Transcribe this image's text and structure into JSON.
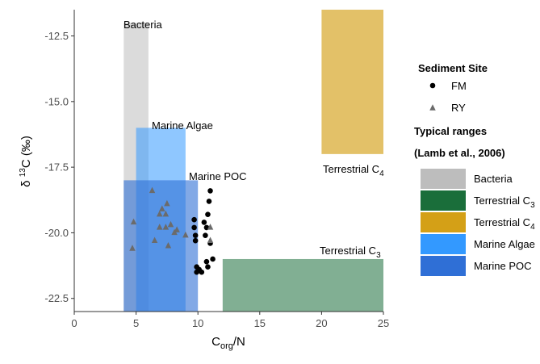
{
  "chart_data": {
    "type": "scatter",
    "xlabel": {
      "main": "C",
      "sub": "org",
      "tail": "/N"
    },
    "ylabel": {
      "delta": "δ",
      "sup": "13",
      "main": "C (‰)"
    },
    "xlim": [
      0,
      25
    ],
    "ylim": [
      -23,
      -11.5
    ],
    "x_ticks": [
      0,
      5,
      10,
      15,
      20,
      25
    ],
    "x_tick_labels": [
      "0",
      "5",
      "10",
      "15",
      "20",
      "25"
    ],
    "y_ticks": [
      -12.5,
      -15.0,
      -17.5,
      -20.0,
      -22.5
    ],
    "y_tick_labels": [
      "-12.5",
      "-15.0",
      "-17.5",
      "-20.0",
      "-22.5"
    ],
    "grid": false,
    "regions": [
      {
        "name": "Bacteria",
        "label": "Bacteria",
        "x": [
          4,
          6
        ],
        "y": [
          -23,
          -12
        ],
        "color": "#bdbdbd",
        "opacity": 0.55
      },
      {
        "name": "Terrestrial C3",
        "label": "Terrestrial C",
        "label_sub": "3",
        "x": [
          12,
          25
        ],
        "y": [
          -23,
          -21
        ],
        "color": "#1a6e3a",
        "opacity": 0.55
      },
      {
        "name": "Terrestrial C4",
        "label": "Terrestrial C",
        "label_sub": "4",
        "x": [
          20,
          25
        ],
        "y": [
          -17,
          -11.5
        ],
        "color": "#d4a017",
        "opacity": 0.65
      },
      {
        "name": "Marine Algae",
        "label": "Marine Algae",
        "x": [
          5,
          9
        ],
        "y": [
          -23,
          -16
        ],
        "color": "#3399ff",
        "opacity": 0.55
      },
      {
        "name": "Marine POC",
        "label": "Marine POC",
        "x": [
          4,
          10
        ],
        "y": [
          -23,
          -18
        ],
        "color": "#2f6fd6",
        "opacity": 0.6
      }
    ],
    "series": [
      {
        "name": "FM",
        "marker": "circle",
        "color": "#000000",
        "points": [
          [
            11.0,
            -18.4
          ],
          [
            10.9,
            -18.8
          ],
          [
            10.8,
            -19.3
          ],
          [
            9.7,
            -19.5
          ],
          [
            10.5,
            -19.6
          ],
          [
            9.7,
            -19.8
          ],
          [
            10.7,
            -19.8
          ],
          [
            9.8,
            -20.1
          ],
          [
            10.6,
            -20.1
          ],
          [
            9.8,
            -20.3
          ],
          [
            11.0,
            -20.4
          ],
          [
            9.9,
            -21.3
          ],
          [
            11.2,
            -21.0
          ],
          [
            10.7,
            -21.1
          ],
          [
            10.1,
            -21.4
          ],
          [
            9.9,
            -21.5
          ],
          [
            10.3,
            -21.5
          ],
          [
            10.8,
            -21.3
          ]
        ]
      },
      {
        "name": "RY",
        "marker": "triangle",
        "color": "#6b6b6b",
        "points": [
          [
            6.3,
            -18.4
          ],
          [
            7.5,
            -18.9
          ],
          [
            7.1,
            -19.1
          ],
          [
            7.4,
            -19.3
          ],
          [
            6.9,
            -19.3
          ],
          [
            4.8,
            -19.6
          ],
          [
            7.8,
            -19.7
          ],
          [
            7.4,
            -19.8
          ],
          [
            6.9,
            -19.8
          ],
          [
            8.3,
            -19.9
          ],
          [
            8.1,
            -20.0
          ],
          [
            9.0,
            -20.1
          ],
          [
            6.5,
            -20.3
          ],
          [
            7.6,
            -20.5
          ],
          [
            4.7,
            -20.6
          ],
          [
            11.0,
            -19.8
          ],
          [
            11.0,
            -20.3
          ]
        ]
      }
    ],
    "legend": {
      "site_title": "Sediment Site",
      "site_items": [
        {
          "label": "FM",
          "marker": "circle"
        },
        {
          "label": "RY",
          "marker": "triangle"
        }
      ],
      "ranges_title": "Typical ranges",
      "ranges_subtitle": "(Lamb et al., 2006)",
      "range_items": [
        {
          "label": "Bacteria",
          "color": "#bdbdbd"
        },
        {
          "label": "Terrestrial C",
          "label_sub": "3",
          "color": "#1a6e3a"
        },
        {
          "label": "Terrestrial C",
          "label_sub": "4",
          "color": "#d4a017"
        },
        {
          "label": "Marine Algae",
          "color": "#3399ff"
        },
        {
          "label": "Marine POC",
          "color": "#2f6fd6"
        }
      ]
    }
  }
}
